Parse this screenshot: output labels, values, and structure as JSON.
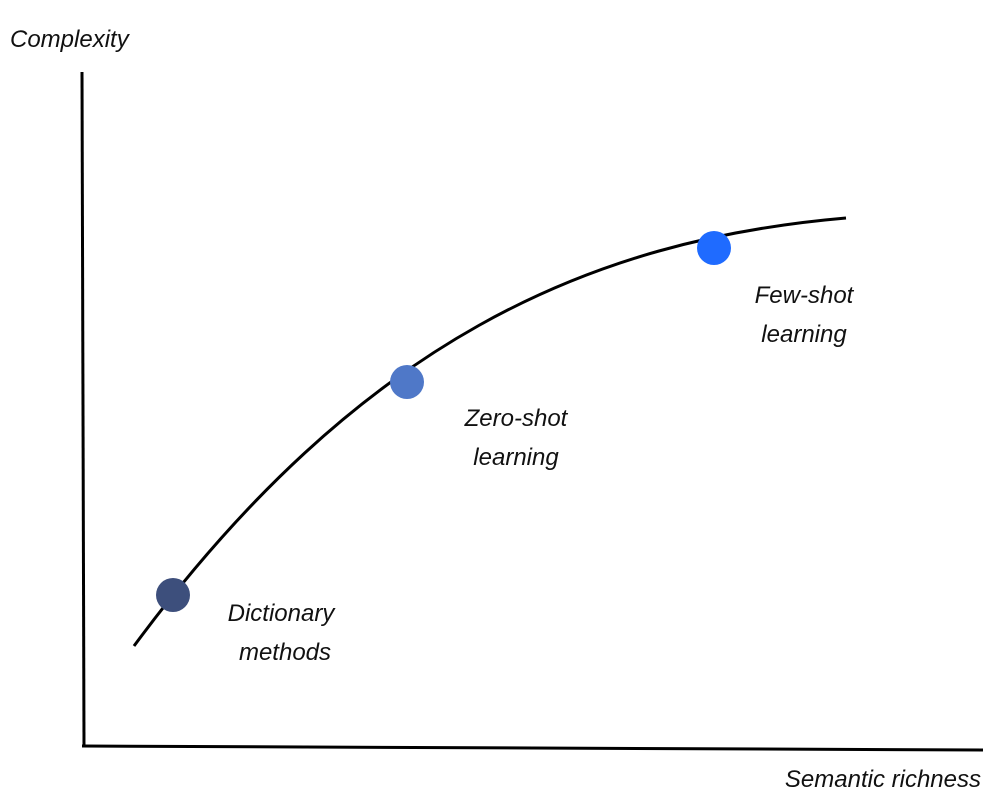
{
  "axes": {
    "y_label": "Complexity",
    "x_label": "Semantic richness"
  },
  "points": [
    {
      "id": "dictionary",
      "label_line1": "Dictionary",
      "label_line2": "methods",
      "color": "#3d4f7c"
    },
    {
      "id": "zero-shot",
      "label_line1": "Zero-shot",
      "label_line2": "learning",
      "color": "#4f78c8"
    },
    {
      "id": "few-shot",
      "label_line1": "Few-shot",
      "label_line2": "learning",
      "color": "#1f6bff"
    }
  ],
  "colors": {
    "axis": "#000000",
    "curve": "#000000",
    "text": "#111111"
  }
}
